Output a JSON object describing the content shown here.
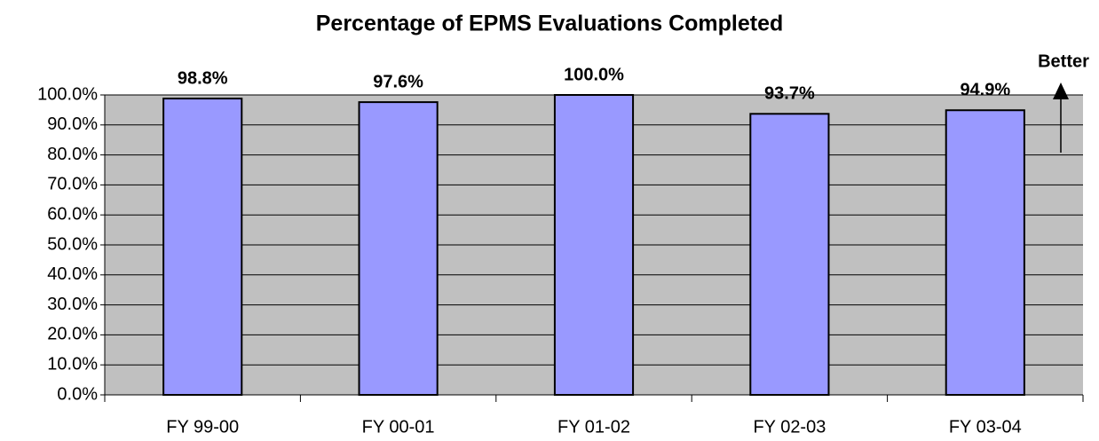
{
  "chart_data": {
    "type": "bar",
    "title": "Percentage of EPMS Evaluations Completed",
    "categories": [
      "FY 99-00",
      "FY 00-01",
      "FY 01-02",
      "FY 02-03",
      "FY 03-04"
    ],
    "values": [
      98.8,
      97.6,
      100.0,
      93.7,
      94.9
    ],
    "value_labels": [
      "98.8%",
      "97.6%",
      "100.0%",
      "93.7%",
      "94.9%"
    ],
    "color": "#9999ff",
    "ylim": [
      0,
      100
    ],
    "yticks": [
      {
        "value": 0,
        "label": "0.0%"
      },
      {
        "value": 10,
        "label": "10.0%"
      },
      {
        "value": 20,
        "label": "20.0%"
      },
      {
        "value": 30,
        "label": "30.0%"
      },
      {
        "value": 40,
        "label": "40.0%"
      },
      {
        "value": 50,
        "label": "50.0%"
      },
      {
        "value": 60,
        "label": "60.0%"
      },
      {
        "value": 70,
        "label": "70.0%"
      },
      {
        "value": 80,
        "label": "80.0%"
      },
      {
        "value": 90,
        "label": "90.0%"
      },
      {
        "value": 100,
        "label": "100.0%"
      }
    ],
    "grid": true,
    "annotation": "Better"
  }
}
